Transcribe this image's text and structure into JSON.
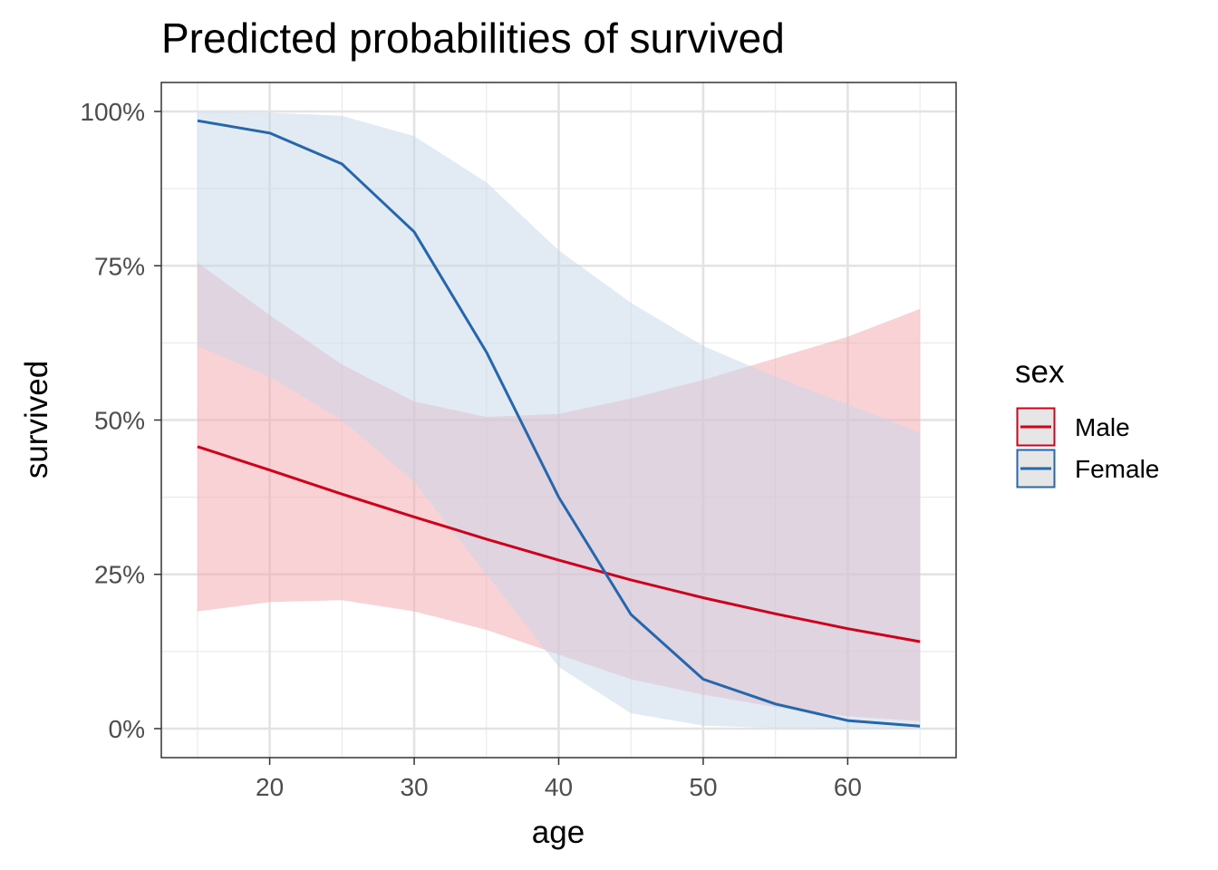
{
  "chart_data": {
    "type": "line",
    "title": "Predicted probabilities of survived",
    "xlabel": "age",
    "ylabel": "survived",
    "xlim": [
      12.5,
      67.5
    ],
    "ylim": [
      -0.047,
      1.047
    ],
    "x_ticks": [
      20,
      30,
      40,
      50,
      60
    ],
    "x_tick_labels": [
      "20",
      "30",
      "40",
      "50",
      "60"
    ],
    "y_ticks": [
      0,
      0.25,
      0.5,
      0.75,
      1.0
    ],
    "y_tick_labels": [
      "0%",
      "25%",
      "50%",
      "75%",
      "100%"
    ],
    "grid": true,
    "legend": {
      "title": "sex",
      "position": "right"
    },
    "x": [
      15,
      20,
      25,
      30,
      35,
      40,
      45,
      50,
      55,
      60,
      65
    ],
    "series": [
      {
        "name": "Male",
        "color": "#d0021b",
        "ribbon_color": "#f4a6ae",
        "values": [
          0.457,
          0.419,
          0.38,
          0.343,
          0.307,
          0.273,
          0.241,
          0.212,
          0.186,
          0.162,
          0.141
        ],
        "lower": [
          0.19,
          0.205,
          0.208,
          0.19,
          0.16,
          0.12,
          0.08,
          0.055,
          0.035,
          0.02,
          0.012
        ],
        "upper": [
          0.755,
          0.67,
          0.59,
          0.53,
          0.505,
          0.51,
          0.535,
          0.565,
          0.6,
          0.635,
          0.68
        ]
      },
      {
        "name": "Female",
        "color": "#2566ad",
        "ribbon_color": "#c5d5e8",
        "values": [
          0.985,
          0.965,
          0.915,
          0.805,
          0.61,
          0.375,
          0.185,
          0.08,
          0.04,
          0.013,
          0.004
        ],
        "lower": [
          0.62,
          0.57,
          0.5,
          0.4,
          0.25,
          0.1,
          0.025,
          0.005,
          0.001,
          0.0005,
          0.0003
        ],
        "upper": [
          0.999,
          0.998,
          0.993,
          0.96,
          0.885,
          0.775,
          0.69,
          0.62,
          0.57,
          0.525,
          0.48
        ]
      }
    ]
  }
}
